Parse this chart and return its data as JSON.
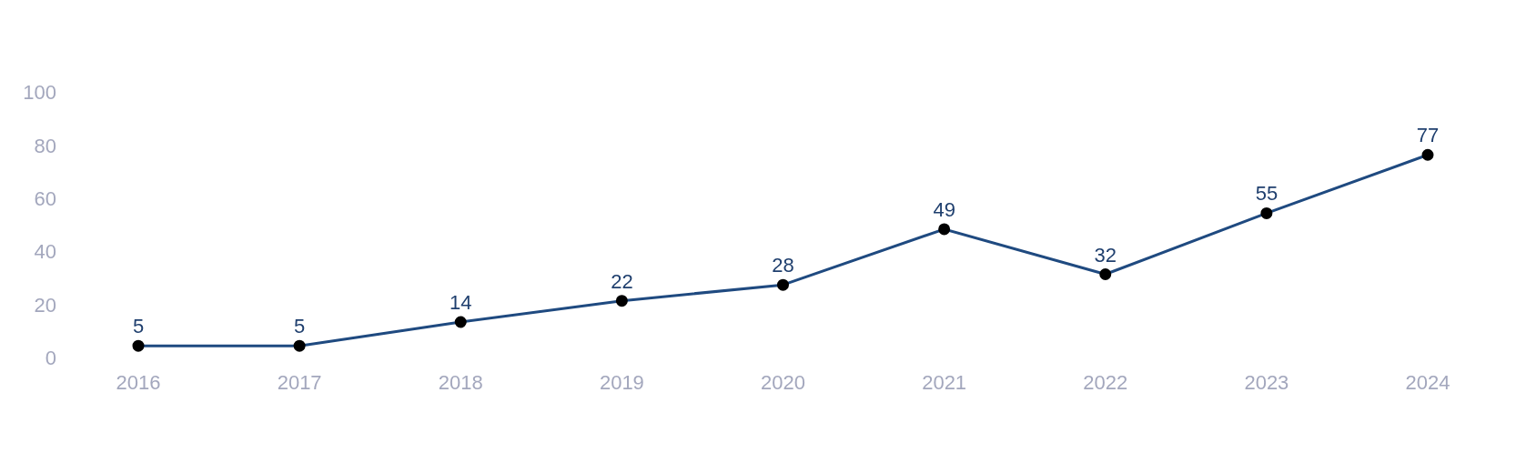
{
  "chart_data": {
    "type": "line",
    "categories": [
      "2016",
      "2017",
      "2018",
      "2019",
      "2020",
      "2021",
      "2022",
      "2023",
      "2024"
    ],
    "series": [
      {
        "color": "#1f4a80",
        "values": [
          5,
          5,
          14,
          22,
          28,
          49,
          32,
          55,
          77
        ]
      }
    ],
    "ylim": [
      0,
      100
    ],
    "yticks": [
      0,
      20,
      40,
      60,
      80,
      100
    ],
    "grid": false,
    "legend": false,
    "marker": "circle",
    "line_style": "solid",
    "data_labels": true
  }
}
